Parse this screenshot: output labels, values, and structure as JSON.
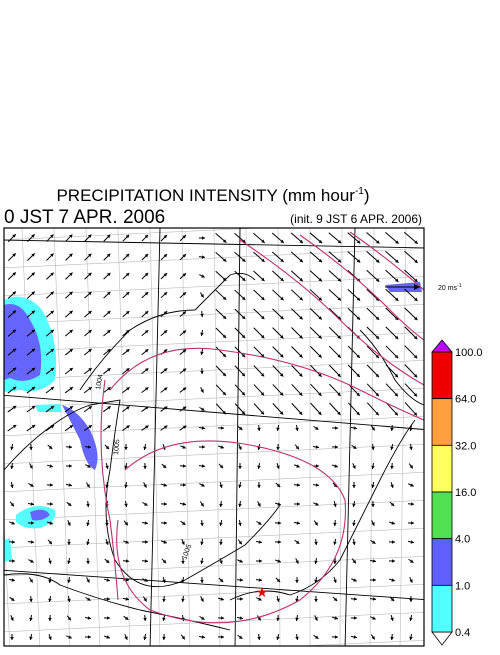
{
  "header": {
    "title": {
      "text": "PRECIPITATION INTENSITY (mm hour",
      "superscript": "-1",
      "close": ")"
    },
    "valid_time": "0 JST 7 APR. 2006",
    "init_time": "(init. 9 JST 6 APR. 2006)"
  },
  "reference_vector": {
    "text": "20 ms",
    "superscript": "-1"
  },
  "colorbar": {
    "labels": [
      "100.0",
      "64.0",
      "32.0",
      "16.0",
      "4.0",
      "1.0",
      "0.4"
    ]
  },
  "isobar_labels": [
    "1004",
    "1005",
    "1005"
  ]
}
